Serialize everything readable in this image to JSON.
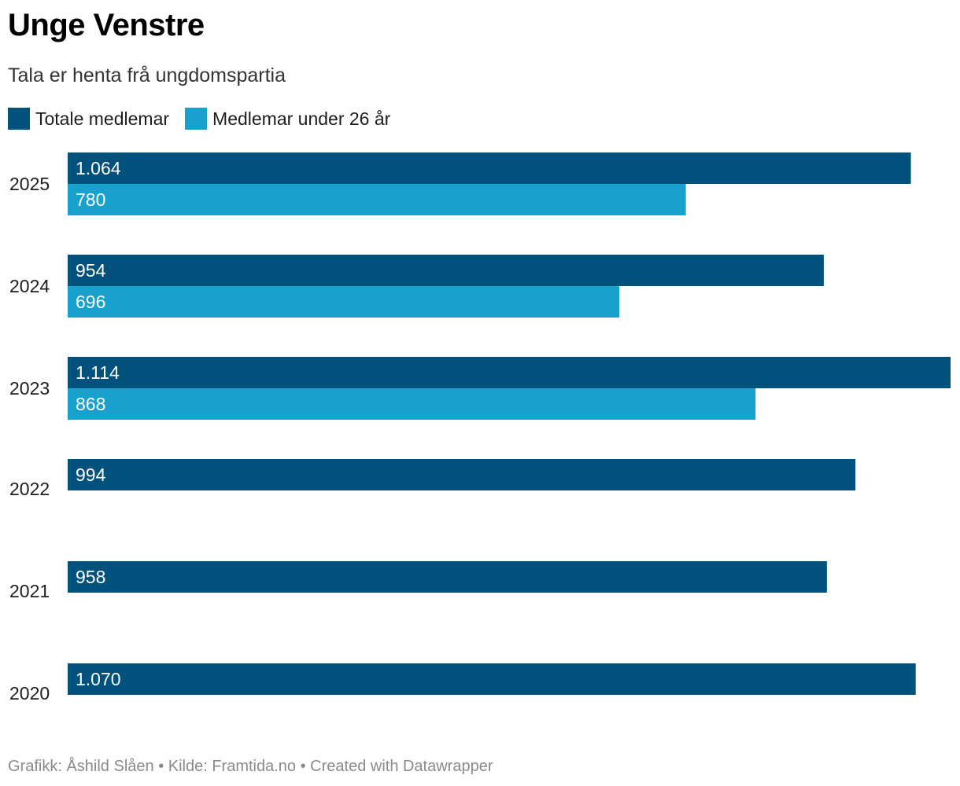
{
  "title": "Unge Venstre",
  "subtitle": "Tala er henta frå ungdomspartia",
  "footer": "Grafikk: Åshild Slåen • Kilde: Framtida.no • Created with Datawrapper",
  "legend": [
    {
      "label": "Totale medlemar",
      "color": "#00527c"
    },
    {
      "label": "Medlemar under 26 år",
      "color": "#18a1cd"
    }
  ],
  "chart_data": {
    "type": "bar",
    "orientation": "horizontal",
    "title": "Unge Venstre",
    "subtitle": "Tala er henta frå ungdomspartia",
    "categories": [
      "2025",
      "2024",
      "2023",
      "2022",
      "2021",
      "2020"
    ],
    "series": [
      {
        "name": "Totale medlemar",
        "color": "#00527c",
        "values": [
          1064,
          954,
          1114,
          994,
          958,
          1070
        ],
        "labels": [
          "1.064",
          "954",
          "1.114",
          "994",
          "958",
          "1.070"
        ]
      },
      {
        "name": "Medlemar under 26 år",
        "color": "#18a1cd",
        "values": [
          780,
          696,
          868,
          null,
          null,
          null
        ],
        "labels": [
          "780",
          "696",
          "868",
          null,
          null,
          null
        ]
      }
    ],
    "xlim": [
      0,
      1114
    ],
    "grid": false,
    "legend_position": "top-left"
  }
}
